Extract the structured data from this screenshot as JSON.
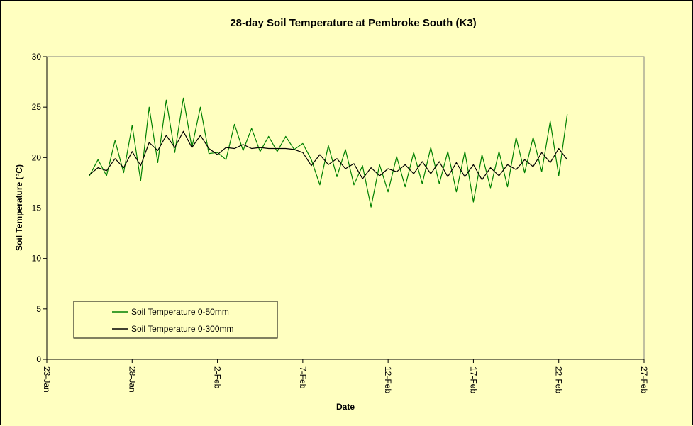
{
  "chart_data": {
    "type": "line",
    "title": "28-day Soil Temperature at Pembroke South (K3)",
    "xlabel": "Date",
    "ylabel": "Soil Temperature (°C)",
    "x_start_label": "23-Jan",
    "xticks": [
      "23-Jan",
      "28-Jan",
      "2-Feb",
      "7-Feb",
      "12-Feb",
      "17-Feb",
      "22-Feb",
      "27-Feb"
    ],
    "xlim": [
      "23-Jan",
      "27-Feb"
    ],
    "yticks": [
      0,
      5,
      10,
      15,
      20,
      25,
      30
    ],
    "ylim": [
      0,
      30
    ],
    "grid": false,
    "legend_position": "lower-left",
    "background_color": "#ffffc0",
    "series": [
      {
        "name": "Soil Temperature 0-50mm",
        "color": "#008000",
        "x": [
          "25-Jan 12:00",
          "26-Jan 00:00",
          "26-Jan 12:00",
          "27-Jan 00:00",
          "27-Jan 12:00",
          "28-Jan 00:00",
          "28-Jan 12:00",
          "29-Jan 00:00",
          "29-Jan 12:00",
          "30-Jan 00:00",
          "30-Jan 12:00",
          "31-Jan 00:00",
          "31-Jan 12:00",
          "1-Feb 00:00",
          "1-Feb 12:00",
          "2-Feb 00:00",
          "2-Feb 12:00",
          "3-Feb 00:00",
          "3-Feb 12:00",
          "4-Feb 00:00",
          "4-Feb 12:00",
          "5-Feb 00:00",
          "5-Feb 12:00",
          "6-Feb 00:00",
          "6-Feb 12:00",
          "7-Feb 00:00",
          "7-Feb 12:00",
          "8-Feb 00:00",
          "8-Feb 12:00",
          "9-Feb 00:00",
          "9-Feb 12:00",
          "10-Feb 00:00",
          "10-Feb 12:00",
          "11-Feb 00:00",
          "11-Feb 12:00",
          "12-Feb 00:00",
          "12-Feb 12:00",
          "13-Feb 00:00",
          "13-Feb 12:00",
          "14-Feb 00:00",
          "14-Feb 12:00",
          "15-Feb 00:00",
          "15-Feb 12:00",
          "16-Feb 00:00",
          "16-Feb 12:00",
          "17-Feb 00:00",
          "17-Feb 12:00",
          "18-Feb 00:00",
          "18-Feb 12:00",
          "19-Feb 00:00",
          "19-Feb 12:00",
          "20-Feb 00:00",
          "20-Feb 12:00",
          "21-Feb 00:00",
          "21-Feb 12:00",
          "22-Feb 00:00",
          "22-Feb 12:00"
        ],
        "y": [
          18.2,
          19.8,
          18.2,
          21.7,
          18.5,
          23.2,
          17.7,
          25.0,
          19.5,
          25.7,
          20.5,
          25.9,
          21.0,
          25.0,
          20.4,
          20.5,
          19.8,
          23.3,
          20.7,
          22.9,
          20.6,
          22.1,
          20.6,
          22.1,
          20.8,
          21.4,
          19.8,
          17.3,
          21.2,
          18.1,
          20.8,
          17.3,
          19.2,
          15.1,
          19.3,
          16.6,
          20.1,
          17.1,
          20.5,
          17.4,
          21.0,
          17.4,
          20.6,
          16.6,
          20.6,
          15.6,
          20.3,
          17.0,
          20.6,
          17.1,
          22.0,
          18.5,
          22.0,
          18.6,
          23.6,
          18.2,
          24.3
        ]
      },
      {
        "name": "Soil Temperature 0-300mm",
        "color": "#000000",
        "x": [
          "25-Jan 12:00",
          "26-Jan 00:00",
          "26-Jan 12:00",
          "27-Jan 00:00",
          "27-Jan 12:00",
          "28-Jan 00:00",
          "28-Jan 12:00",
          "29-Jan 00:00",
          "29-Jan 12:00",
          "30-Jan 00:00",
          "30-Jan 12:00",
          "31-Jan 00:00",
          "31-Jan 12:00",
          "1-Feb 00:00",
          "1-Feb 12:00",
          "2-Feb 00:00",
          "2-Feb 12:00",
          "3-Feb 00:00",
          "3-Feb 12:00",
          "4-Feb 00:00",
          "4-Feb 12:00",
          "5-Feb 00:00",
          "5-Feb 12:00",
          "6-Feb 00:00",
          "6-Feb 12:00",
          "7-Feb 00:00",
          "7-Feb 12:00",
          "8-Feb 00:00",
          "8-Feb 12:00",
          "9-Feb 00:00",
          "9-Feb 12:00",
          "10-Feb 00:00",
          "10-Feb 12:00",
          "11-Feb 00:00",
          "11-Feb 12:00",
          "12-Feb 00:00",
          "12-Feb 12:00",
          "13-Feb 00:00",
          "13-Feb 12:00",
          "14-Feb 00:00",
          "14-Feb 12:00",
          "15-Feb 00:00",
          "15-Feb 12:00",
          "16-Feb 00:00",
          "16-Feb 12:00",
          "17-Feb 00:00",
          "17-Feb 12:00",
          "18-Feb 00:00",
          "18-Feb 12:00",
          "19-Feb 00:00",
          "19-Feb 12:00",
          "20-Feb 00:00",
          "20-Feb 12:00",
          "21-Feb 00:00",
          "21-Feb 12:00",
          "22-Feb 00:00",
          "22-Feb 12:00"
        ],
        "y": [
          18.3,
          19.0,
          18.7,
          19.9,
          19.0,
          20.6,
          19.2,
          21.5,
          20.7,
          22.2,
          21.0,
          22.6,
          21.0,
          22.2,
          20.9,
          20.3,
          21.0,
          20.9,
          21.3,
          20.9,
          21.0,
          20.9,
          20.9,
          20.9,
          20.8,
          20.5,
          19.2,
          20.3,
          19.3,
          19.9,
          18.9,
          19.4,
          17.9,
          19.0,
          18.2,
          18.9,
          18.6,
          19.3,
          18.4,
          19.6,
          18.4,
          19.6,
          18.1,
          19.5,
          18.1,
          19.3,
          17.8,
          19.0,
          18.2,
          19.3,
          18.8,
          19.8,
          19.1,
          20.5,
          19.5,
          20.9,
          19.8
        ]
      }
    ]
  }
}
